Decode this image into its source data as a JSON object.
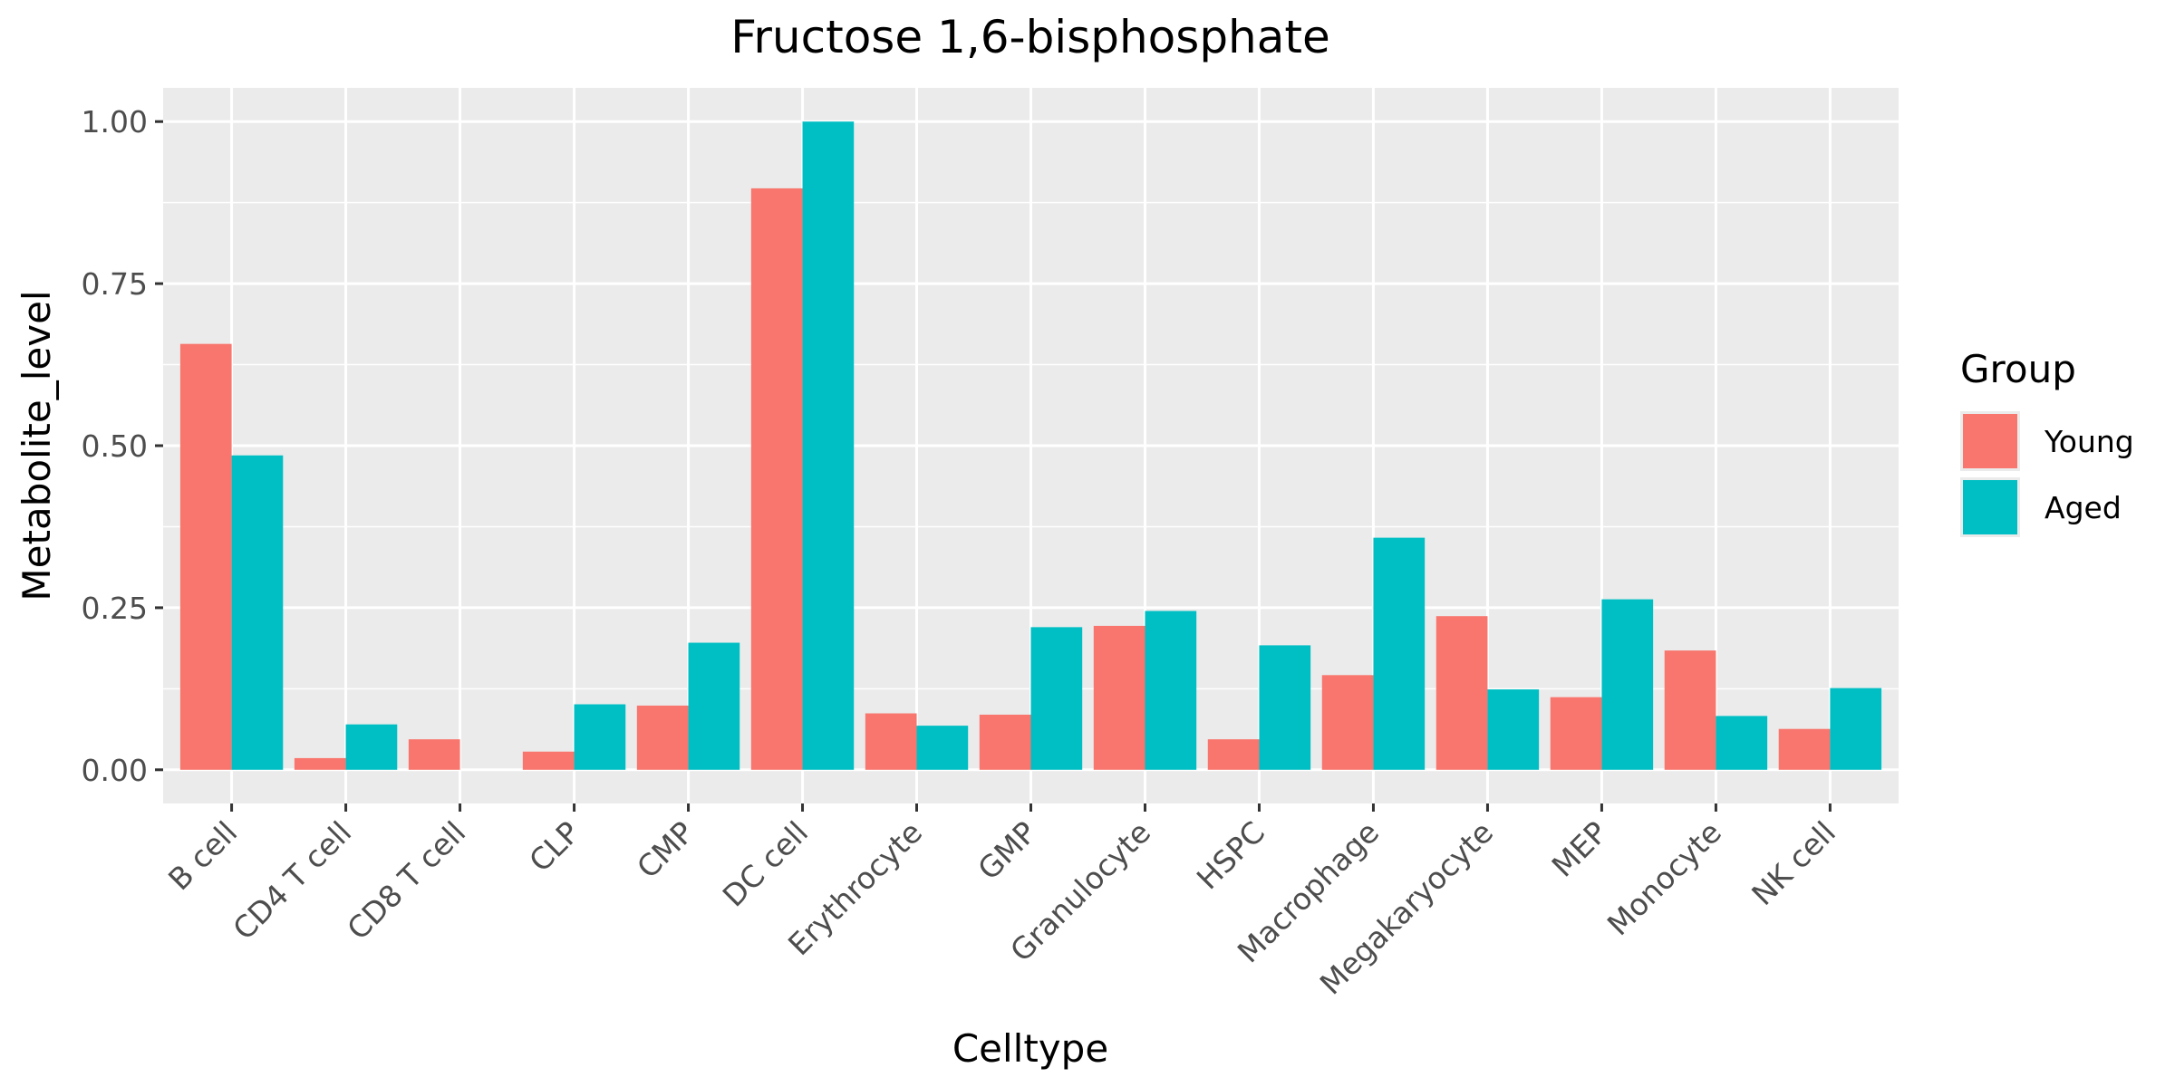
{
  "chart_data": {
    "type": "bar",
    "title": "Fructose 1,6-bisphosphate",
    "xlabel": "Celltype",
    "ylabel": "Metabolite_level",
    "categories": [
      "B cell",
      "CD4 T cell",
      "CD8 T cell",
      "CLP",
      "CMP",
      "DC cell",
      "Erythrocyte",
      "GMP",
      "Granulocyte",
      "HSPC",
      "Macrophage",
      "Megakaryocyte",
      "MEP",
      "Monocyte",
      "NK cell"
    ],
    "series": [
      {
        "name": "Young",
        "color": "#F8766D",
        "values": [
          0.657,
          0.018,
          0.047,
          0.028,
          0.099,
          0.897,
          0.087,
          0.085,
          0.222,
          0.047,
          0.146,
          0.237,
          0.112,
          0.184,
          0.063
        ]
      },
      {
        "name": "Aged",
        "color": "#00BFC4",
        "values": [
          0.485,
          0.07,
          null,
          0.101,
          0.196,
          1.0,
          0.068,
          0.22,
          0.245,
          0.192,
          0.358,
          0.124,
          0.263,
          0.083,
          0.126
        ]
      }
    ],
    "ylim": [
      -0.052,
      1.052
    ],
    "yticks": [
      0.0,
      0.25,
      0.5,
      0.75,
      1.0
    ],
    "ytick_labels": [
      "0.00",
      "0.25",
      "0.50",
      "0.75",
      "1.00"
    ],
    "grid": true,
    "legend": {
      "title": "Group",
      "position": "right"
    },
    "panel_background": "#EBEBEB"
  }
}
